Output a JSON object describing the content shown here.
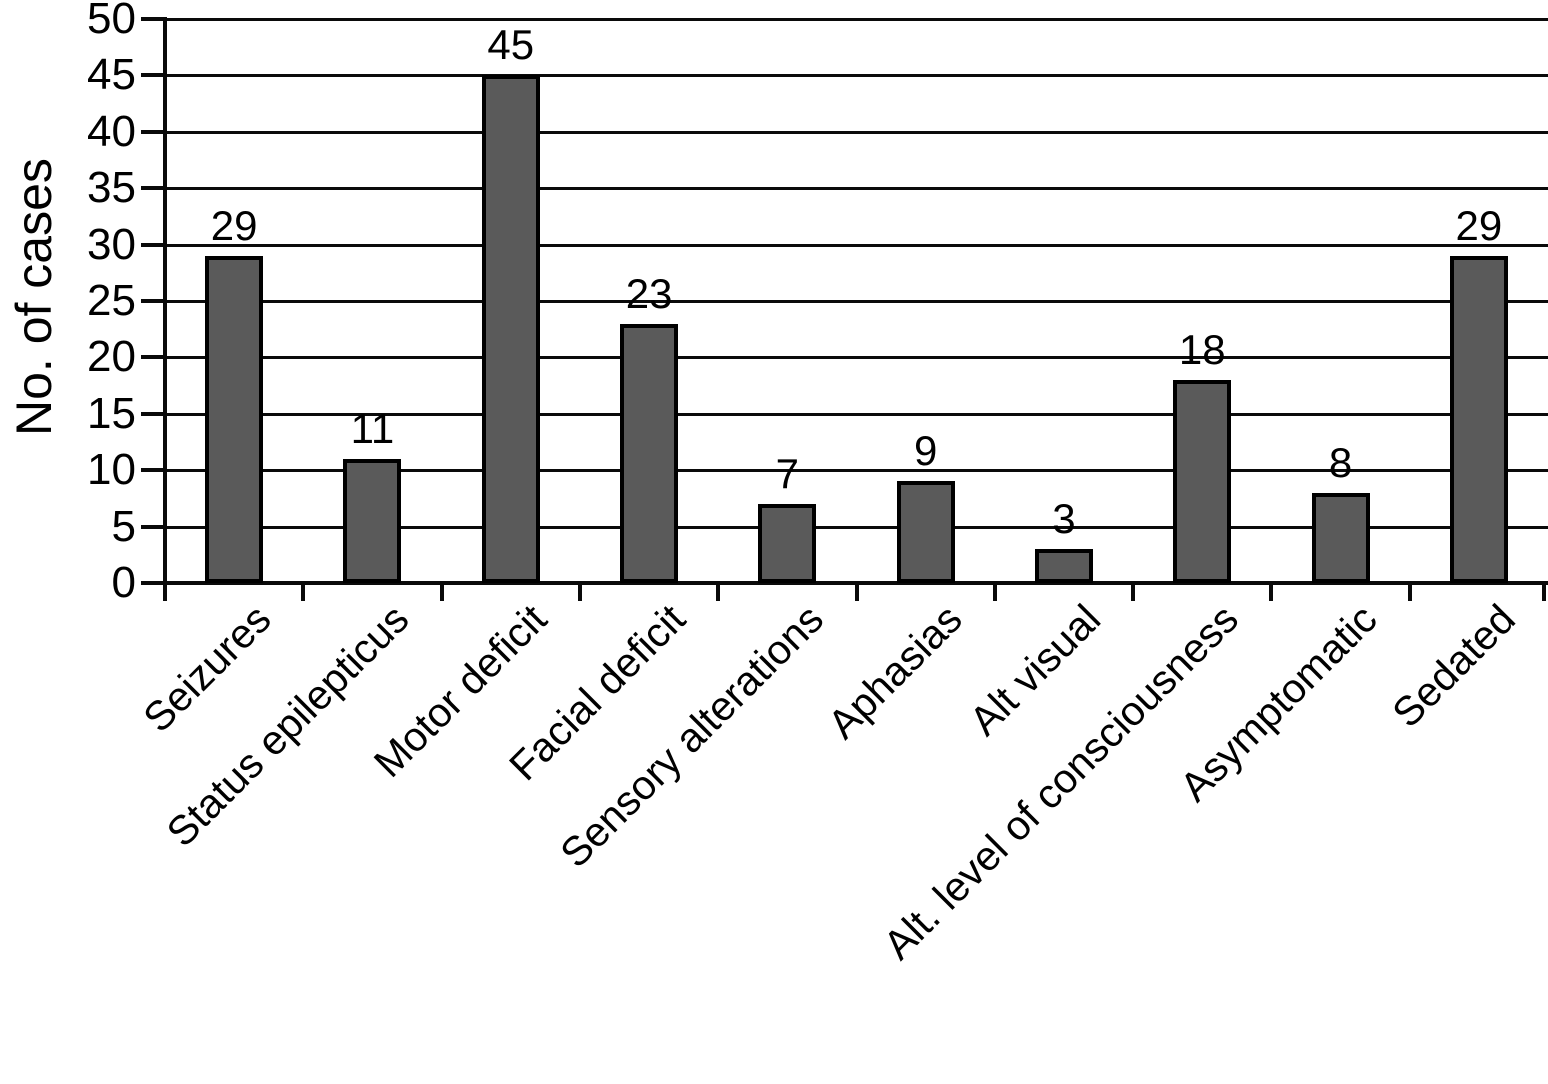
{
  "chart_data": {
    "type": "bar",
    "title": "",
    "ylabel": "No. of cases",
    "xlabel": "",
    "categories": [
      "Seizures",
      "Status epilepticus",
      "Motor deficit",
      "Facial deficit",
      "Sensory alterations",
      "Aphasias",
      "Alt visual",
      "Alt. level of consciousness",
      "Asymptomatic",
      "Sedated"
    ],
    "values": [
      29,
      11,
      45,
      23,
      7,
      9,
      3,
      18,
      8,
      29
    ],
    "value_labels": [
      "29",
      "11",
      "45",
      "23",
      "7",
      "9",
      "3",
      "18",
      "8",
      "29"
    ],
    "ylim": [
      0,
      50
    ],
    "ytick_step": 5,
    "yticks": [
      0,
      5,
      10,
      15,
      20,
      25,
      30,
      35,
      40,
      45,
      50
    ],
    "grid": true,
    "legend": false,
    "bar_color": "#5a5a5a",
    "bar_border_color": "#000000",
    "axis_color": "#0a0a0a",
    "text_color": "#000000",
    "background": "#ffffff"
  }
}
